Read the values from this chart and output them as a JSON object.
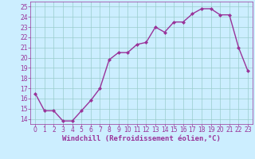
{
  "x": [
    0,
    1,
    2,
    3,
    4,
    5,
    6,
    7,
    8,
    9,
    10,
    11,
    12,
    13,
    14,
    15,
    16,
    17,
    18,
    19,
    20,
    21,
    22,
    23
  ],
  "y": [
    16.5,
    14.8,
    14.8,
    13.8,
    13.8,
    14.8,
    15.8,
    17.0,
    19.8,
    20.5,
    20.5,
    21.3,
    21.5,
    23.0,
    22.5,
    23.5,
    23.5,
    24.3,
    24.8,
    24.8,
    24.2,
    24.2,
    21.0,
    18.7
  ],
  "line_color": "#993399",
  "marker": "D",
  "marker_size": 2.0,
  "bg_color": "#cceeff",
  "grid_color": "#99cccc",
  "xlabel": "Windchill (Refroidissement éolien,°C)",
  "ylabel": "",
  "ylim": [
    13.5,
    25.5
  ],
  "xlim": [
    -0.5,
    23.5
  ],
  "yticks": [
    14,
    15,
    16,
    17,
    18,
    19,
    20,
    21,
    22,
    23,
    24,
    25
  ],
  "xticks": [
    0,
    1,
    2,
    3,
    4,
    5,
    6,
    7,
    8,
    9,
    10,
    11,
    12,
    13,
    14,
    15,
    16,
    17,
    18,
    19,
    20,
    21,
    22,
    23
  ],
  "axis_color": "#993399",
  "xlabel_color": "#993399",
  "tick_color": "#993399",
  "line_width": 1.0,
  "tick_fontsize": 5.5,
  "xlabel_fontsize": 6.5
}
